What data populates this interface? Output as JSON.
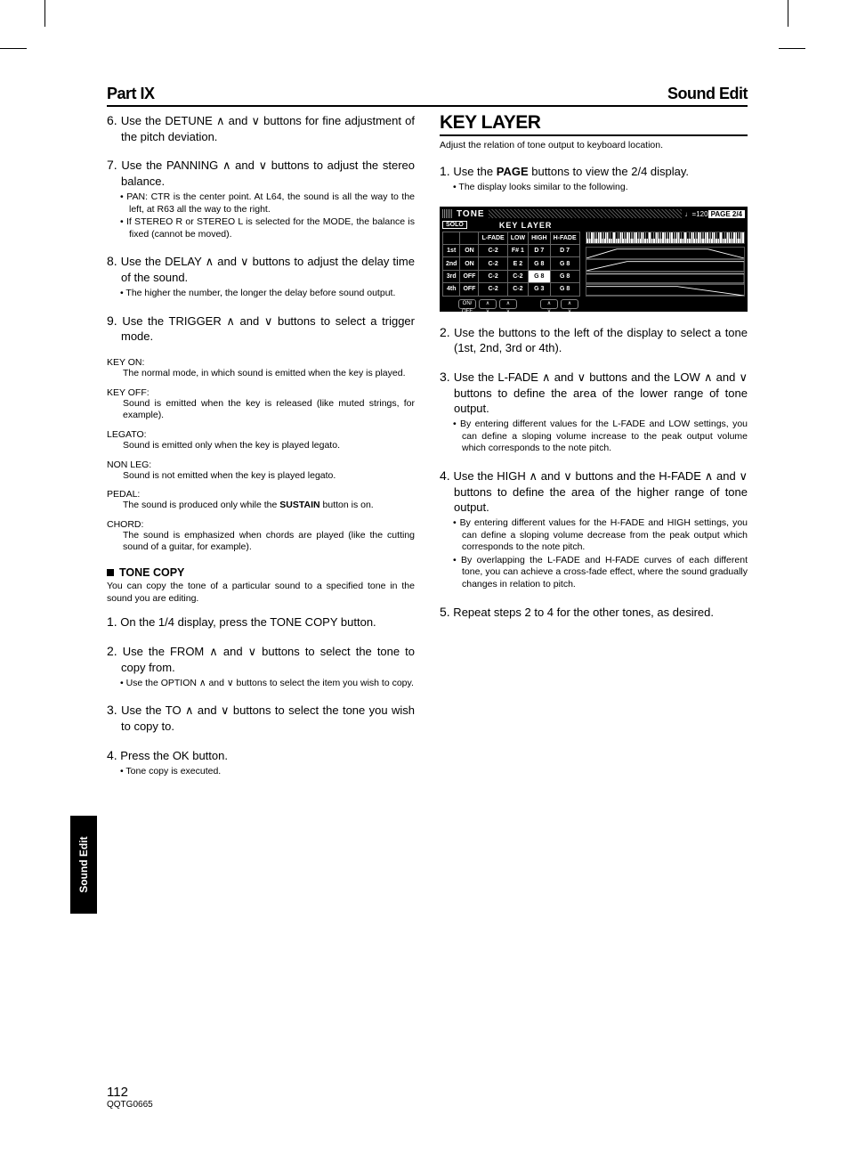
{
  "header": {
    "left": "Part IX",
    "right": "Sound Edit"
  },
  "sidetab": "Sound Edit",
  "footer": {
    "page": "112",
    "code": "QQTG0665"
  },
  "left_col": {
    "steps_a": [
      {
        "n": "6.",
        "text": "Use the DETUNE ∧ and ∨ buttons for fine adjustment of the pitch deviation."
      },
      {
        "n": "7.",
        "text": "Use the PANNING ∧ and ∨ buttons to adjust the stereo balance.",
        "bullets": [
          "PAN: CTR is the center point. At L64, the sound is all the way to the left, at R63 all the way to the right.",
          "If STEREO R or STEREO L is selected for the MODE, the balance is fixed (cannot be moved)."
        ]
      },
      {
        "n": "8.",
        "text": "Use the DELAY ∧ and ∨ buttons to adjust the delay time of the sound.",
        "bullets": [
          "The higher the number, the longer the delay before sound output."
        ]
      },
      {
        "n": "9.",
        "text": "Use the TRIGGER ∧ and ∨ buttons to select a trigger mode."
      }
    ],
    "defs": [
      {
        "term": "KEY ON:",
        "desc": "The normal mode, in which sound is emitted when the key is played."
      },
      {
        "term": "KEY OFF:",
        "desc": "Sound is emitted when the key is released (like muted strings, for example)."
      },
      {
        "term": "LEGATO:",
        "desc": "Sound is emitted only when the key is played legato."
      },
      {
        "term": "NON LEG:",
        "desc": "Sound is not emitted when the key is played legato."
      },
      {
        "term": "PEDAL:",
        "desc_pre": "The sound is produced only while the ",
        "desc_bold": "SUSTAIN",
        "desc_post": " button is on."
      },
      {
        "term": "CHORD:",
        "desc": "The sound is emphasized when chords are played (like the cutting sound of a guitar, for example)."
      }
    ],
    "tonecopy": {
      "title": "TONE COPY",
      "intro": "You can copy the tone of a particular sound to a specified tone in the sound you are editing.",
      "steps": [
        {
          "n": "1.",
          "text": "On the 1/4 display, press the TONE COPY button."
        },
        {
          "n": "2.",
          "text": "Use the FROM ∧ and ∨ buttons to select the tone to copy from.",
          "bullets": [
            "Use the OPTION ∧ and ∨ buttons to select the item you wish to copy."
          ]
        },
        {
          "n": "3.",
          "text": "Use the TO ∧ and ∨ buttons to select the tone you wish to copy to."
        },
        {
          "n": "4.",
          "text": "Press the OK button.",
          "bullets": [
            "Tone copy is executed."
          ]
        }
      ]
    }
  },
  "right_col": {
    "title": "KEY LAYER",
    "intro": "Adjust the relation of tone output to keyboard location.",
    "step1": {
      "n": "1.",
      "text_pre": "Use the ",
      "text_bold": "PAGE",
      "text_post": " buttons to view the 2/4 display.",
      "bullets": [
        "The display looks similar to the following."
      ]
    },
    "screenshot": {
      "tone_label": "TONE",
      "tempo": "♩=120",
      "page": "PAGE 2/4",
      "solo": "SOLO",
      "key_layer": "KEY LAYER",
      "headers": [
        "",
        "",
        "L-FADE",
        "LOW",
        "HIGH",
        "H-FADE"
      ],
      "rows": [
        {
          "label": "1st",
          "on": "ON",
          "lfade": "C-2",
          "low": "F# 1",
          "high": "D 7",
          "hfade": "D 7",
          "low_inv": false,
          "high_inv": false
        },
        {
          "label": "2nd",
          "on": "ON",
          "lfade": "C-2",
          "low": "E 2",
          "high": "G 8",
          "hfade": "G 8",
          "low_inv": false,
          "high_inv": false
        },
        {
          "label": "3rd",
          "on": "OFF",
          "lfade": "C-2",
          "low": "C-2",
          "high": "G 8",
          "hfade": "G 8",
          "low_inv": false,
          "high_inv": true
        },
        {
          "label": "4th",
          "on": "OFF",
          "lfade": "C-2",
          "low": "C-2",
          "high": "G 3",
          "hfade": "G 8",
          "low_inv": false,
          "high_inv": false
        }
      ],
      "envelopes": [
        [
          [
            0,
            14
          ],
          [
            30,
            2
          ],
          [
            120,
            2
          ],
          [
            156,
            14
          ]
        ],
        [
          [
            0,
            14
          ],
          [
            40,
            2
          ],
          [
            156,
            2
          ],
          [
            156,
            14
          ]
        ],
        [
          [
            0,
            2
          ],
          [
            156,
            2
          ],
          [
            156,
            14
          ],
          [
            0,
            14
          ]
        ],
        [
          [
            0,
            2
          ],
          [
            90,
            2
          ],
          [
            156,
            14
          ],
          [
            0,
            14
          ]
        ]
      ]
    },
    "steps_rest": [
      {
        "n": "2.",
        "text": "Use the buttons to the left of the display to select a tone (1st, 2nd, 3rd or 4th)."
      },
      {
        "n": "3.",
        "text": "Use the L-FADE ∧ and ∨ buttons and the LOW ∧ and ∨ buttons to define the area of the lower range of tone output.",
        "bullets": [
          "By entering different values for the L-FADE and LOW settings, you can define a sloping volume increase to the peak output volume which corresponds to the note pitch."
        ]
      },
      {
        "n": "4.",
        "text": "Use the HIGH ∧ and ∨ buttons and the H-FADE ∧ and ∨ buttons to define the area of the higher range of tone output.",
        "bullets": [
          "By entering different values for the H-FADE and HIGH settings, you can define a sloping volume decrease from the peak output which corresponds to the note pitch.",
          "By overlapping the L-FADE and H-FADE curves of each different tone, you can achieve a cross-fade effect, where the sound gradually changes in relation to pitch."
        ]
      },
      {
        "n": "5.",
        "text": "Repeat steps 2 to 4 for the other tones, as desired."
      }
    ]
  }
}
